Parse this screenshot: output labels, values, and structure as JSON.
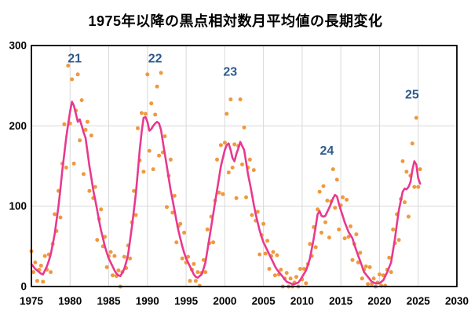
{
  "title": "1975年以降の黒点相対数月平均値の長期変化",
  "chart_data": {
    "type": "scatter",
    "title": "1975年以降の黒点相対数月平均値の長期変化",
    "xlabel": "",
    "ylabel": "",
    "xlim": [
      1975,
      2030
    ],
    "ylim": [
      0,
      300
    ],
    "x_tick_labels": [
      "1975",
      "1980",
      "1985",
      "1990",
      "1995",
      "2000",
      "2005",
      "2010",
      "2015",
      "2020",
      "2025",
      "2030"
    ],
    "y_tick_labels": [
      "0",
      "100",
      "200",
      "300"
    ],
    "x_ticks": [
      1975,
      1980,
      1985,
      1990,
      1995,
      2000,
      2005,
      2010,
      2015,
      2020,
      2025,
      2030
    ],
    "y_ticks": [
      0,
      100,
      200,
      300
    ],
    "x_gridlines": [
      1980,
      1985,
      1990,
      1995,
      2000,
      2005,
      2010,
      2015,
      2020,
      2025
    ],
    "y_gridlines": [
      100,
      200
    ],
    "grid": true,
    "legend": "none",
    "frame_color": "#000000",
    "grid_color": "#d8d8d8",
    "tick_label_color": "#000000",
    "annotation_color": "#2f5a8c",
    "annotations": [
      {
        "label": "21",
        "year": 1980.6,
        "value": 285
      },
      {
        "label": "22",
        "year": 1991.0,
        "value": 285
      },
      {
        "label": "23",
        "year": 2000.7,
        "value": 268
      },
      {
        "label": "24",
        "year": 2013.2,
        "value": 170
      },
      {
        "label": "25",
        "year": 2024.2,
        "value": 240
      }
    ],
    "series": [
      {
        "name": "monthly-mean-sunspot-number",
        "type": "scatter",
        "color": "#f0993d",
        "marker_radius": 2.5,
        "x_start": 1975.0,
        "x_step": 0.25,
        "values": [
          44,
          18,
          30,
          7,
          21,
          26,
          6,
          38,
          21,
          40,
          18,
          53,
          90,
          69,
          119,
          86,
          153,
          202,
          148,
          275,
          203,
          258,
          153,
          219,
          264,
          182,
          232,
          140,
          195,
          205,
          119,
          188,
          110,
          124,
          58,
          84,
          96,
          50,
          62,
          24,
          38,
          43,
          14,
          38,
          13,
          20,
          0,
          18,
          37,
          23,
          51,
          35,
          80,
          119,
          89,
          197,
          157,
          216,
          143,
          215,
          264,
          169,
          228,
          146,
          214,
          249,
          163,
          266,
          167,
          187,
          99,
          138,
          158,
          92,
          113,
          55,
          75,
          78,
          35,
          67,
          30,
          37,
          7,
          21,
          28,
          7,
          18,
          1,
          17,
          33,
          18,
          71,
          54,
          87,
          55,
          107,
          158,
          117,
          176,
          115,
          179,
          215,
          142,
          233,
          148,
          177,
          110,
          175,
          233,
          152,
          198,
          111,
          148,
          158,
          89,
          145,
          82,
          93,
          40,
          64,
          78,
          41,
          57,
          22,
          38,
          43,
          14,
          39,
          15,
          21,
          0,
          10,
          17,
          0,
          10,
          0,
          5,
          12,
          0,
          22,
          9,
          22,
          4,
          28,
          53,
          38,
          74,
          49,
          96,
          118,
          67,
          125,
          80,
          107,
          61,
          106,
          146,
          98,
          133,
          71,
          101,
          111,
          60,
          108,
          62,
          75,
          33,
          53,
          65,
          30,
          42,
          10,
          21,
          25,
          3,
          24,
          3,
          10,
          0,
          5,
          15,
          1,
          14,
          1,
          21,
          36,
          18,
          71,
          54,
          90,
          58,
          109,
          156,
          105,
          143,
          87,
          138,
          178,
          124,
          210,
          124,
          146
        ]
      },
      {
        "name": "smoothed-sunspot-number",
        "type": "line",
        "color": "#e8398f",
        "stroke_width": 2.6,
        "x_start": 1975.0,
        "x_step": 0.25,
        "values": [
          28,
          25,
          22,
          20,
          18,
          16,
          15,
          20,
          25,
          32,
          40,
          52,
          65,
          82,
          100,
          122,
          145,
          165,
          185,
          202,
          218,
          230,
          225,
          215,
          205,
          208,
          200,
          192,
          185,
          168,
          150,
          135,
          120,
          108,
          95,
          82,
          70,
          60,
          50,
          42,
          35,
          30,
          25,
          20,
          16,
          14,
          13,
          17,
          22,
          30,
          40,
          57,
          75,
          95,
          115,
          142,
          170,
          192,
          210,
          211,
          205,
          194,
          196,
          200,
          203,
          205,
          203,
          195,
          180,
          165,
          150,
          135,
          120,
          108,
          95,
          82,
          70,
          60,
          50,
          42,
          35,
          30,
          25,
          20,
          15,
          12,
          11,
          13,
          15,
          22,
          30,
          45,
          60,
          75,
          90,
          105,
          120,
          135,
          150,
          160,
          170,
          176,
          178,
          170,
          160,
          156,
          165,
          172,
          180,
          175,
          170,
          155,
          140,
          128,
          115,
          102,
          90,
          80,
          70,
          62,
          55,
          50,
          45,
          40,
          35,
          30,
          25,
          21,
          18,
          15,
          12,
          9,
          6,
          5,
          4,
          3,
          3,
          4,
          5,
          8,
          12,
          16,
          20,
          27,
          35,
          47,
          60,
          75,
          90,
          94,
          88,
          87,
          88,
          93,
          98,
          104,
          110,
          114,
          112,
          103,
          95,
          88,
          80,
          74,
          68,
          64,
          60,
          52,
          45,
          38,
          32,
          25,
          18,
          15,
          12,
          9,
          6,
          5,
          4,
          4,
          4,
          6,
          8,
          13,
          18,
          24,
          30,
          45,
          60,
          78,
          95,
          107,
          118,
          122,
          121,
          124,
          130,
          145,
          156,
          152,
          135,
          128
        ]
      }
    ]
  }
}
